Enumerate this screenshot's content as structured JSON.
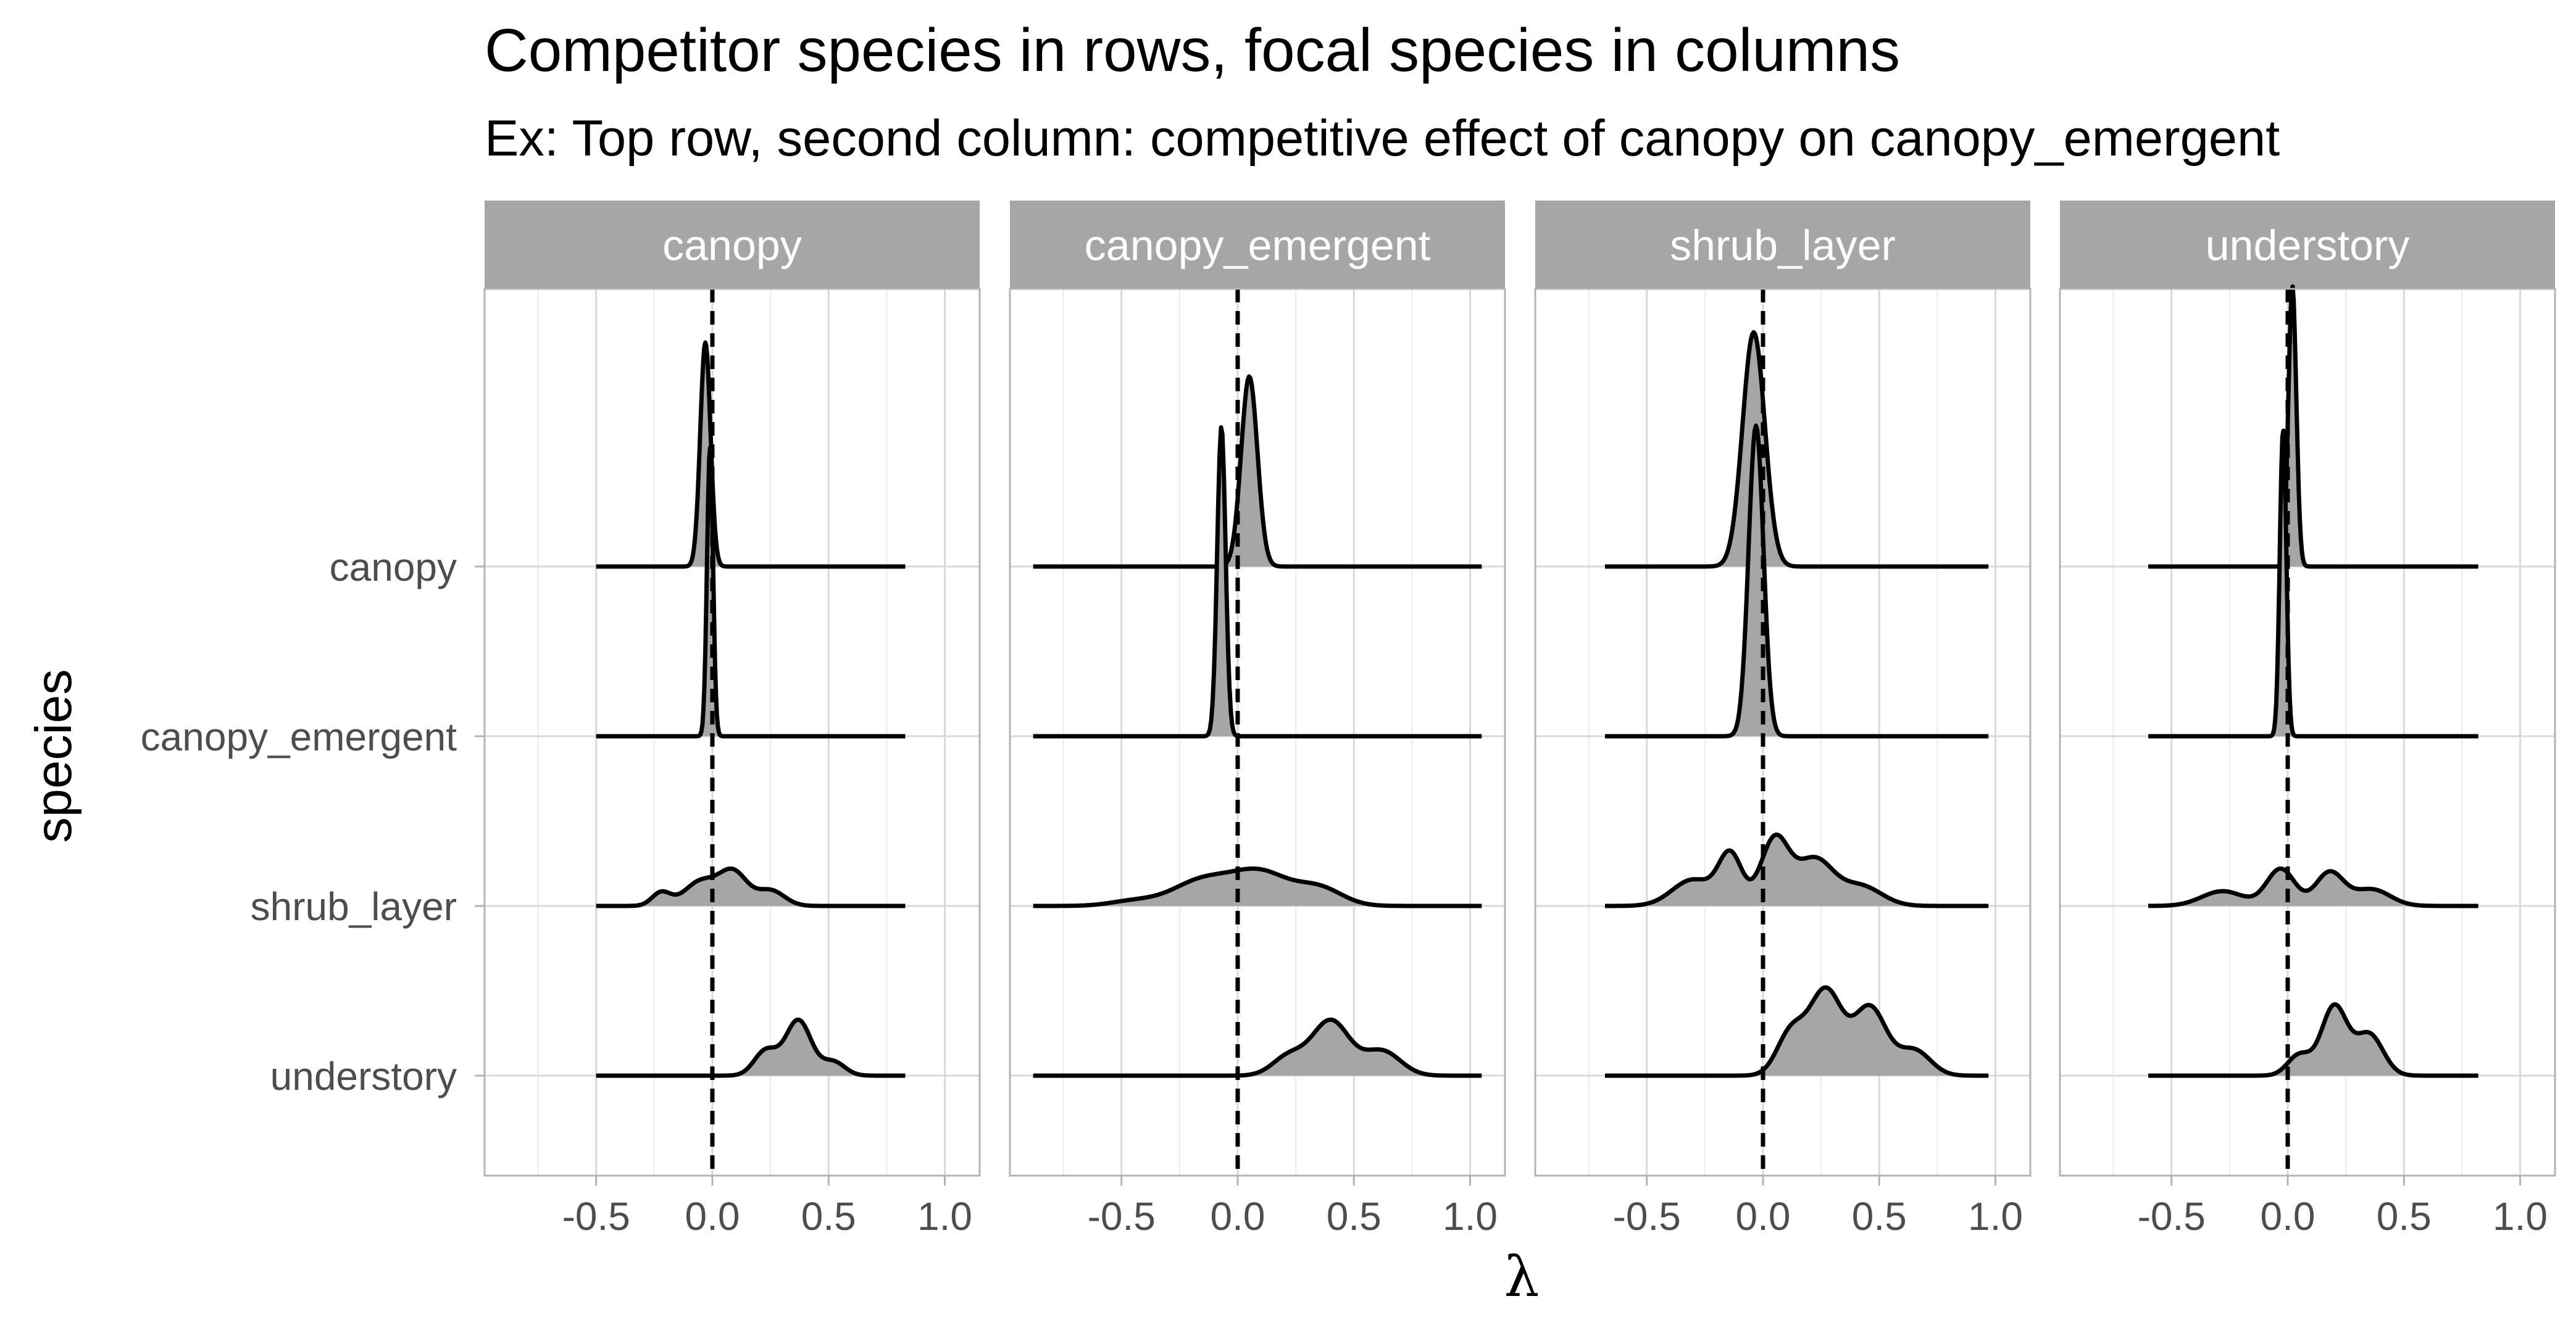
{
  "chart_data": {
    "type": "area",
    "kind": "ridgeline density, faceted",
    "title": "Competitor species in rows, focal species in columns",
    "subtitle": "Ex: Top row, second column: competitive effect of canopy on canopy_emergent",
    "xlabel": "λ",
    "ylabel": "species",
    "facets": [
      "canopy",
      "canopy_emergent",
      "shrub_layer",
      "understory"
    ],
    "rows": [
      "canopy",
      "canopy_emergent",
      "shrub_layer",
      "understory"
    ],
    "x_ticks": [
      "-0.5",
      "0.0",
      "0.5",
      "1.0"
    ],
    "xlim": [
      -0.98,
      1.15
    ],
    "reference_line_x": 0,
    "fill_color": "#a6a6a6",
    "line_color": "#000000",
    "strip_color": "#a6a6a6",
    "panels": [
      {
        "facet": "canopy",
        "x_range": [
          -0.5,
          0.83
        ],
        "ridges": [
          {
            "row": "canopy",
            "height": 1.32,
            "components": [
              {
                "mean": -0.03,
                "sd": 0.022,
                "weight": 1
              }
            ]
          },
          {
            "row": "canopy_emergent",
            "height": 1.7,
            "components": [
              {
                "mean": -0.01,
                "sd": 0.013,
                "weight": 1
              }
            ]
          },
          {
            "row": "shrub_layer",
            "height": 0.22,
            "components": [
              {
                "mean": -0.22,
                "sd": 0.04,
                "weight": 0.3
              },
              {
                "mean": -0.05,
                "sd": 0.07,
                "weight": 0.55
              },
              {
                "mean": 0.09,
                "sd": 0.06,
                "weight": 0.75
              },
              {
                "mean": 0.25,
                "sd": 0.06,
                "weight": 0.35
              }
            ]
          },
          {
            "row": "understory",
            "height": 0.33,
            "components": [
              {
                "mean": 0.23,
                "sd": 0.05,
                "weight": 0.45
              },
              {
                "mean": 0.37,
                "sd": 0.055,
                "weight": 1
              },
              {
                "mean": 0.52,
                "sd": 0.05,
                "weight": 0.25
              }
            ]
          }
        ]
      },
      {
        "facet": "canopy_emergent",
        "x_range": [
          -0.88,
          1.05
        ],
        "ridges": [
          {
            "row": "canopy",
            "height": 1.12,
            "components": [
              {
                "mean": 0.05,
                "sd": 0.035,
                "weight": 1
              }
            ]
          },
          {
            "row": "canopy_emergent",
            "height": 1.82,
            "components": [
              {
                "mean": -0.07,
                "sd": 0.018,
                "weight": 1
              }
            ]
          },
          {
            "row": "shrub_layer",
            "height": 0.22,
            "components": [
              {
                "mean": -0.45,
                "sd": 0.1,
                "weight": 0.15
              },
              {
                "mean": -0.15,
                "sd": 0.13,
                "weight": 0.8
              },
              {
                "mean": 0.1,
                "sd": 0.12,
                "weight": 1
              },
              {
                "mean": 0.35,
                "sd": 0.1,
                "weight": 0.55
              }
            ]
          },
          {
            "row": "understory",
            "height": 0.33,
            "components": [
              {
                "mean": 0.22,
                "sd": 0.07,
                "weight": 0.35
              },
              {
                "mean": 0.4,
                "sd": 0.08,
                "weight": 1
              },
              {
                "mean": 0.62,
                "sd": 0.08,
                "weight": 0.45
              }
            ]
          }
        ]
      },
      {
        "facet": "shrub_layer",
        "x_range": [
          -0.68,
          0.97
        ],
        "ridges": [
          {
            "row": "canopy",
            "height": 1.38,
            "components": [
              {
                "mean": -0.04,
                "sd": 0.048,
                "weight": 1
              }
            ]
          },
          {
            "row": "canopy_emergent",
            "height": 1.83,
            "components": [
              {
                "mean": -0.03,
                "sd": 0.032,
                "weight": 1
              }
            ]
          },
          {
            "row": "shrub_layer",
            "height": 0.42,
            "components": [
              {
                "mean": -0.3,
                "sd": 0.09,
                "weight": 0.4
              },
              {
                "mean": -0.14,
                "sd": 0.05,
                "weight": 0.75
              },
              {
                "mean": 0.05,
                "sd": 0.06,
                "weight": 1
              },
              {
                "mean": 0.22,
                "sd": 0.08,
                "weight": 0.7
              },
              {
                "mean": 0.42,
                "sd": 0.09,
                "weight": 0.3
              }
            ]
          },
          {
            "row": "understory",
            "height": 0.52,
            "components": [
              {
                "mean": 0.12,
                "sd": 0.06,
                "weight": 0.5
              },
              {
                "mean": 0.27,
                "sd": 0.07,
                "weight": 1
              },
              {
                "mean": 0.46,
                "sd": 0.07,
                "weight": 0.8
              },
              {
                "mean": 0.65,
                "sd": 0.07,
                "weight": 0.3
              }
            ]
          }
        ]
      },
      {
        "facet": "understory",
        "x_range": [
          -0.6,
          0.82
        ],
        "ridges": [
          {
            "row": "canopy",
            "height": 1.65,
            "components": [
              {
                "mean": 0.02,
                "sd": 0.017,
                "weight": 1
              }
            ]
          },
          {
            "row": "canopy_emergent",
            "height": 1.8,
            "components": [
              {
                "mean": -0.02,
                "sd": 0.014,
                "weight": 1
              }
            ]
          },
          {
            "row": "shrub_layer",
            "height": 0.22,
            "components": [
              {
                "mean": -0.28,
                "sd": 0.09,
                "weight": 0.4
              },
              {
                "mean": -0.03,
                "sd": 0.06,
                "weight": 1
              },
              {
                "mean": 0.18,
                "sd": 0.06,
                "weight": 0.9
              },
              {
                "mean": 0.36,
                "sd": 0.08,
                "weight": 0.45
              }
            ]
          },
          {
            "row": "understory",
            "height": 0.42,
            "components": [
              {
                "mean": 0.05,
                "sd": 0.05,
                "weight": 0.3
              },
              {
                "mean": 0.2,
                "sd": 0.055,
                "weight": 1
              },
              {
                "mean": 0.35,
                "sd": 0.06,
                "weight": 0.6
              }
            ]
          }
        ]
      }
    ]
  }
}
